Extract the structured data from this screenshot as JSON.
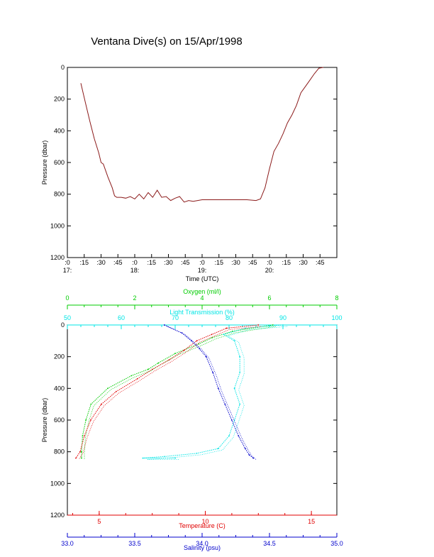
{
  "title": "Ventana Dive(s) on 15/Apr/1998",
  "colors": {
    "axis": "#000000",
    "time_series": "#8b1a1a",
    "oxygen": "#00cc00",
    "transmission": "#00e5e5",
    "temperature": "#e00000",
    "salinity": "#0000cc"
  },
  "chart_data": [
    {
      "type": "line",
      "xlabel": "Time (UTC)",
      "ylabel": "Pressure (dbar)",
      "ylim": [
        1200,
        0
      ],
      "yticks": [
        "0",
        "200",
        "400",
        "600",
        "800",
        "1000",
        "1200"
      ],
      "xticks_minutes": [
        ":0",
        ":15",
        ":30",
        ":45",
        ":0",
        ":15",
        ":30",
        ":45",
        ":0",
        ":15",
        ":30",
        ":45",
        ":0",
        ":15",
        ":30",
        ":45"
      ],
      "xticks_hours": [
        "17:",
        "18:",
        "19:",
        "20:"
      ],
      "x_start": "17:00",
      "x_end": "21:00",
      "series": [
        {
          "x": [
            "17:12",
            "17:16",
            "17:20",
            "17:24",
            "17:28",
            "17:30",
            "17:32",
            "17:36",
            "17:40",
            "17:42",
            "17:44",
            "17:48",
            "17:52",
            "17:56",
            "18:00",
            "18:04",
            "18:08",
            "18:12",
            "18:16",
            "18:20",
            "18:24",
            "18:28",
            "18:32",
            "18:36",
            "18:40",
            "18:44",
            "18:48",
            "18:52",
            "18:56",
            "19:00",
            "19:10",
            "19:20",
            "19:30",
            "19:40",
            "19:48",
            "19:52",
            "19:56",
            "20:00",
            "20:04",
            "20:08",
            "20:12",
            "20:16",
            "20:20",
            "20:24",
            "20:28",
            "20:32",
            "20:36",
            "20:40",
            "20:44",
            "20:48"
          ],
          "y": [
            100,
            220,
            340,
            450,
            540,
            600,
            610,
            690,
            760,
            810,
            820,
            820,
            825,
            815,
            830,
            800,
            830,
            790,
            820,
            775,
            820,
            815,
            840,
            825,
            815,
            850,
            840,
            845,
            840,
            835,
            835,
            835,
            835,
            835,
            840,
            830,
            760,
            640,
            530,
            480,
            420,
            350,
            300,
            240,
            160,
            120,
            80,
            40,
            5,
            0
          ]
        }
      ]
    },
    {
      "type": "scatter",
      "ylabel": "Pressure (dbar)",
      "ylim": [
        1200,
        0
      ],
      "yticks": [
        "0",
        "200",
        "400",
        "600",
        "800",
        "1000",
        "1200"
      ],
      "axes": {
        "oxygen": {
          "label": "Oxygen (ml/l)",
          "range": [
            0,
            8
          ],
          "ticks": [
            "0",
            "2",
            "4",
            "6",
            "8"
          ]
        },
        "transmission": {
          "label": "Light Transmission (%)",
          "range": [
            50,
            100
          ],
          "ticks": [
            "50",
            "60",
            "70",
            "80",
            "90",
            "100"
          ]
        },
        "temperature": {
          "label": "Temperature (C)",
          "range": [
            3.5,
            16.2
          ],
          "ticks": [
            "5",
            "10",
            "15"
          ]
        },
        "salinity": {
          "label": "Salinity (psu)",
          "range": [
            33.0,
            35.0
          ],
          "ticks": [
            "33.0",
            "33.5",
            "34.0",
            "34.5",
            "35.0"
          ]
        }
      },
      "series": [
        {
          "name": "Oxygen (ml/l)",
          "x": [
            6.1,
            4.9,
            4.3,
            3.9,
            3.2,
            2.7,
            2.4,
            1.9,
            1.2,
            0.7,
            0.55,
            0.45,
            0.42,
            0.42
          ],
          "y": [
            0,
            40,
            80,
            120,
            180,
            240,
            280,
            320,
            400,
            500,
            600,
            700,
            800,
            840
          ]
        },
        {
          "name": "Light Transmission (%)",
          "x": [
            90,
            83,
            79,
            81,
            82,
            82,
            81,
            82,
            81,
            80,
            78,
            74,
            68,
            64,
            70
          ],
          "y": [
            0,
            20,
            60,
            100,
            200,
            300,
            400,
            500,
            600,
            700,
            780,
            810,
            830,
            840,
            840
          ]
        },
        {
          "name": "Temperature (C)",
          "x": [
            12.5,
            11.0,
            10.3,
            9.6,
            9.0,
            8.3,
            7.5,
            6.8,
            5.8,
            5.1,
            4.6,
            4.3,
            4.1,
            3.9
          ],
          "y": [
            0,
            20,
            60,
            100,
            160,
            220,
            280,
            340,
            420,
            500,
            600,
            700,
            800,
            840
          ]
        },
        {
          "name": "Salinity (psu)",
          "x": [
            33.72,
            33.85,
            33.92,
            33.98,
            34.03,
            34.08,
            34.12,
            34.17,
            34.22,
            34.27,
            34.32,
            34.35,
            34.38
          ],
          "y": [
            0,
            50,
            100,
            150,
            200,
            300,
            400,
            500,
            600,
            700,
            780,
            820,
            840
          ]
        }
      ]
    }
  ]
}
